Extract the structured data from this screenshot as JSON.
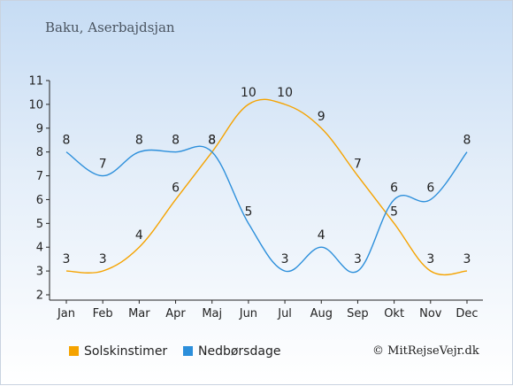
{
  "location": "Baku, Aserbajdsjan",
  "credit": "© MitRejseVejr.dk",
  "legend": [
    {
      "label": "Solskinstimer",
      "color": "#f5a300"
    },
    {
      "label": "Nedbørsdage",
      "color": "#2c8fdb"
    }
  ],
  "chart_data": {
    "type": "line",
    "categories": [
      "Jan",
      "Feb",
      "Mar",
      "Apr",
      "Maj",
      "Jun",
      "Jul",
      "Aug",
      "Sep",
      "Okt",
      "Nov",
      "Dec"
    ],
    "ylim": [
      2,
      11
    ],
    "yticks": [
      2,
      3,
      4,
      5,
      6,
      7,
      8,
      9,
      10,
      11
    ],
    "grid": false,
    "legend_position": "bottom",
    "series": [
      {
        "name": "Solskinstimer",
        "color": "#f5a300",
        "values": [
          3,
          3,
          4,
          6,
          8,
          10,
          10,
          9,
          7,
          5,
          3,
          3
        ]
      },
      {
        "name": "Nedbørsdage",
        "color": "#2c8fdb",
        "values": [
          8,
          7,
          8,
          8,
          8,
          5,
          3,
          4,
          3,
          6,
          6,
          8
        ]
      }
    ]
  }
}
